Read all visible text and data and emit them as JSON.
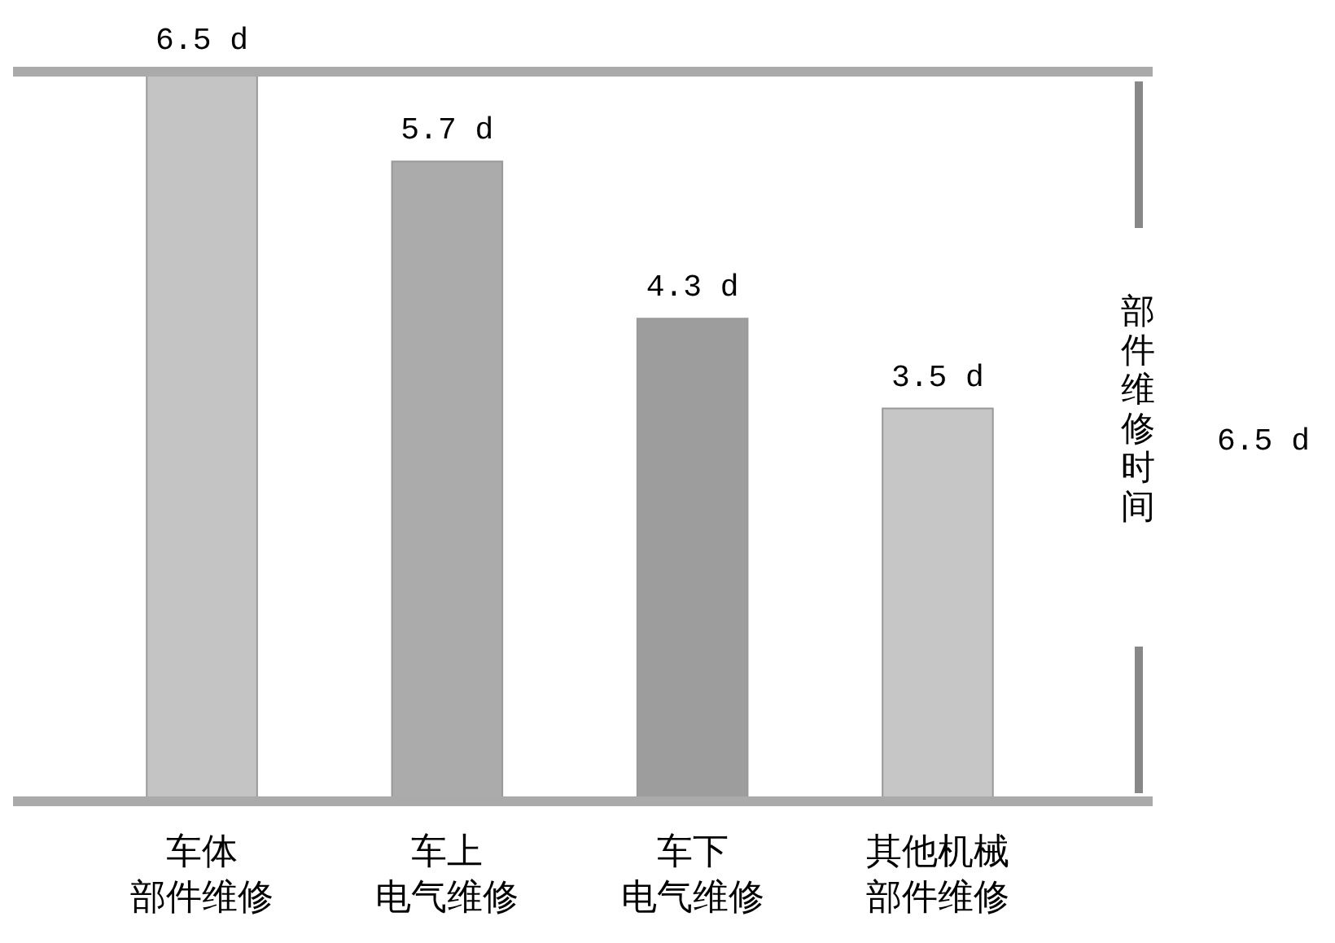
{
  "chart_data": {
    "type": "bar",
    "categories": [
      "车体部件维修",
      "车上电气维修",
      "车下电气维修",
      "其他机械部件维修"
    ],
    "values": [
      6.5,
      5.7,
      4.3,
      3.5
    ],
    "colors": [
      "#c4c4c4",
      "#ababab",
      "#9d9d9d",
      "#c6c6c6"
    ],
    "value_labels": [
      "6.5 d",
      "5.7 d",
      "4.3 d",
      "3.5 d"
    ],
    "ylim": [
      0,
      6.5
    ],
    "tick_labels": "x",
    "ref_lines": [
      {
        "axis": "y",
        "value": 6.5,
        "color": "#aaaaaa"
      }
    ],
    "annotations": [
      "部件维修时间",
      "6.5 d"
    ]
  }
}
